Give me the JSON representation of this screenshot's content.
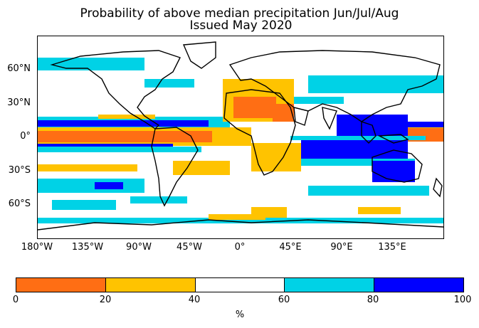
{
  "title": {
    "line1": "Probability of above median precipitation Jun/Jul/Aug",
    "line2": "Issued May 2020"
  },
  "map": {
    "latitude_labels": [
      "60°N",
      "30°N",
      "0°",
      "30°S",
      "60°S"
    ],
    "longitude_labels": [
      "180°W",
      "135°W",
      "90°W",
      "45°W",
      "0°",
      "45°E",
      "90°E",
      "135°E"
    ]
  },
  "colorbar": {
    "bins": [
      {
        "range": [
          0,
          20
        ],
        "color": "#ff6e14"
      },
      {
        "range": [
          20,
          40
        ],
        "color": "#ffc300"
      },
      {
        "range": [
          40,
          60
        ],
        "color": "#ffffff"
      },
      {
        "range": [
          60,
          80
        ],
        "color": "#00d2e6"
      },
      {
        "range": [
          80,
          100
        ],
        "color": "#0000ff"
      }
    ],
    "tick_labels": [
      "0",
      "20",
      "40",
      "60",
      "80",
      "100"
    ],
    "unit": "%"
  }
}
